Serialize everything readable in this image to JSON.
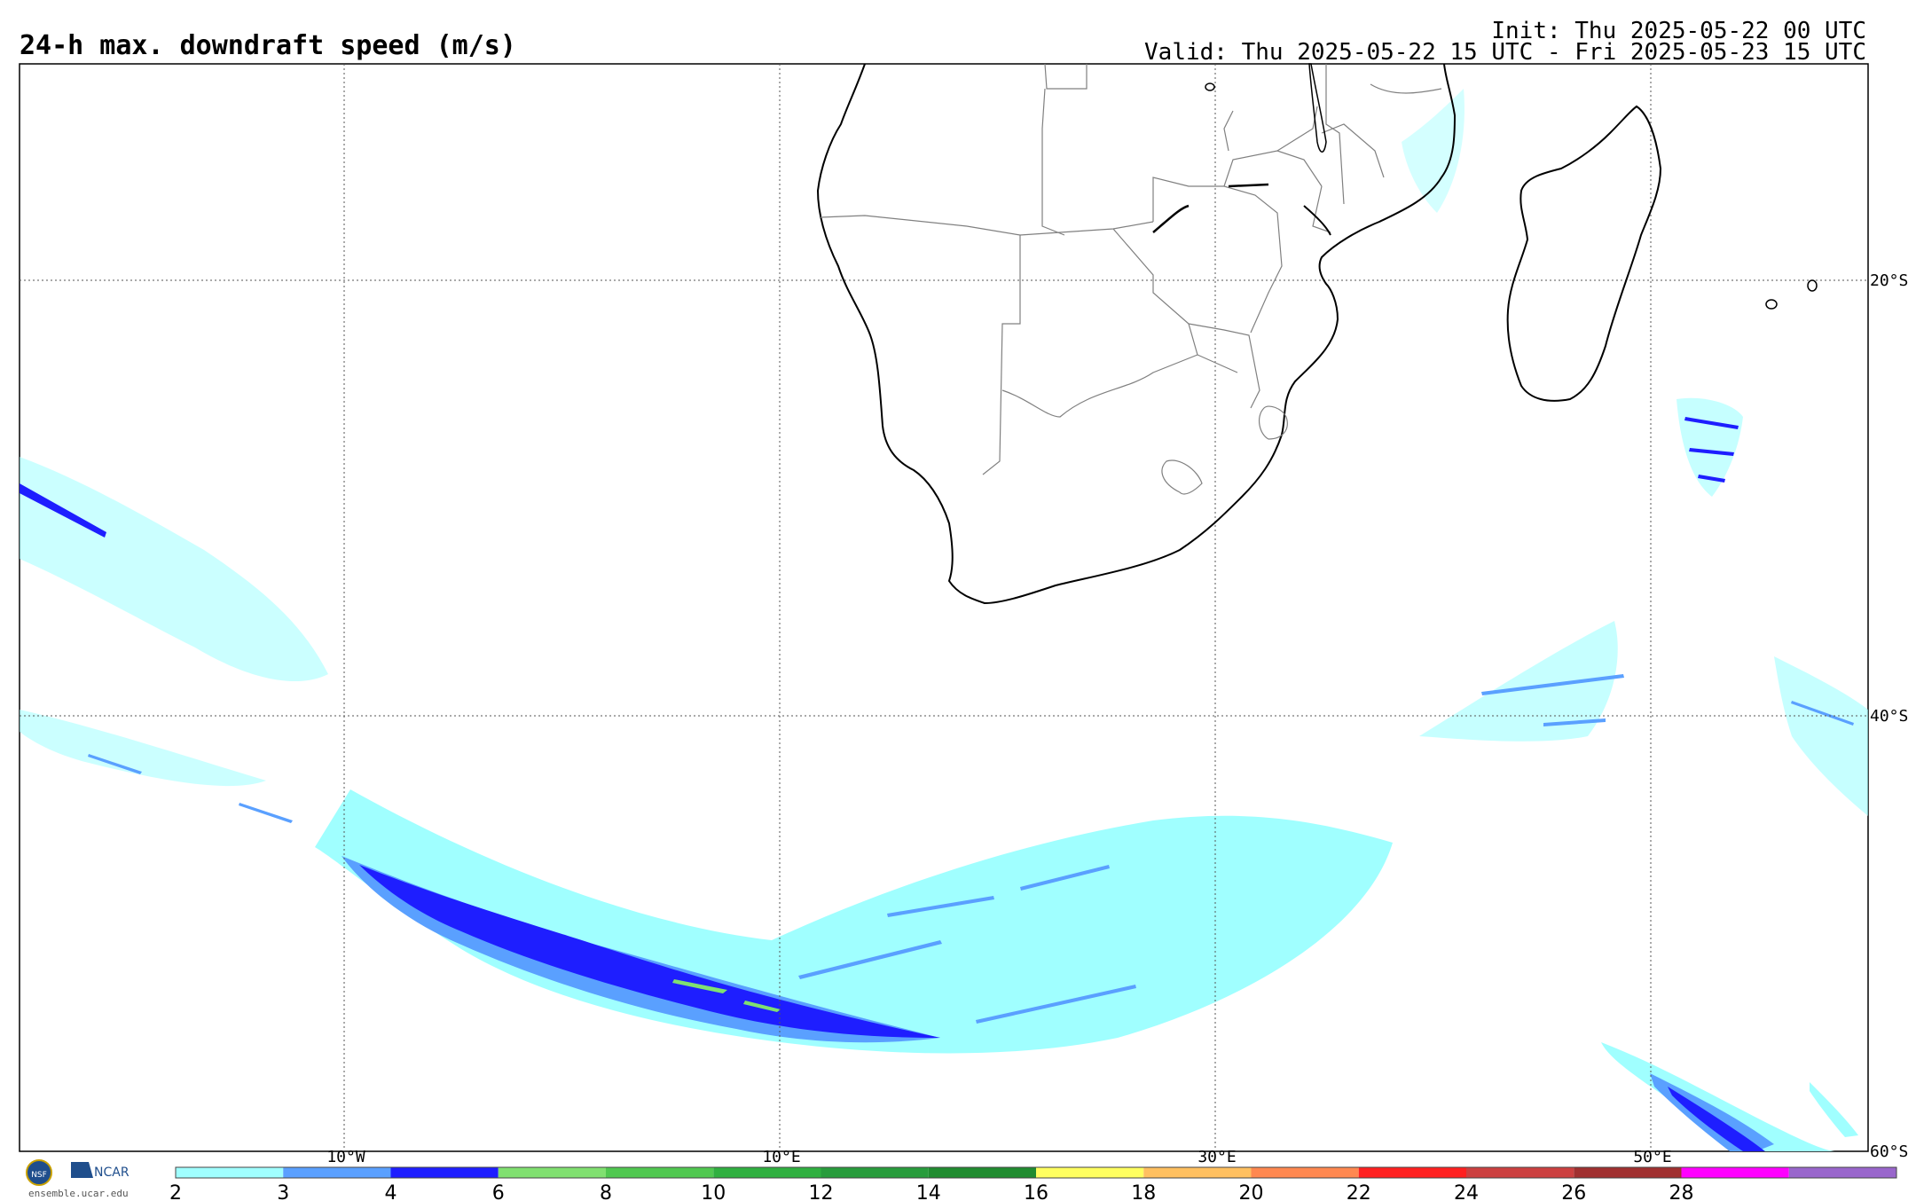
{
  "header": {
    "title": "24-h max. downdraft speed (m/s)",
    "init": "Init: Thu 2025-05-22 00 UTC",
    "valid": "Valid: Thu 2025-05-22 15 UTC - Fri 2025-05-23 15 UTC"
  },
  "map": {
    "lon_labels": [
      "10°W",
      "10°E",
      "30°E",
      "50°E"
    ],
    "lat_labels": [
      "20°S",
      "40°S",
      "60°S"
    ],
    "land_color": "#ffffff",
    "coast_color": "#000000",
    "border_color": "#808080"
  },
  "colorbar": {
    "ticks": [
      "2",
      "3",
      "4",
      "6",
      "8",
      "10",
      "12",
      "14",
      "16",
      "18",
      "20",
      "22",
      "24",
      "26",
      "28"
    ],
    "colors": [
      "#a0ffff",
      "#5aa0ff",
      "#1e1eff",
      "#80e070",
      "#50c850",
      "#30b040",
      "#289c3c",
      "#208c30",
      "#ffff60",
      "#ffc060",
      "#ff8850",
      "#ff2020",
      "#cc4040",
      "#a03030",
      "#ff00ff",
      "#9966cc"
    ]
  },
  "footer": {
    "logo_left": "NSF",
    "logo_right": "NCAR",
    "site": "ensemble.ucar.edu"
  },
  "colors": {
    "speed_2_3": "#a0ffff",
    "speed_3_4": "#5aa0ff",
    "speed_4_6": "#1e1eff",
    "speed_6_8": "#80e070"
  }
}
